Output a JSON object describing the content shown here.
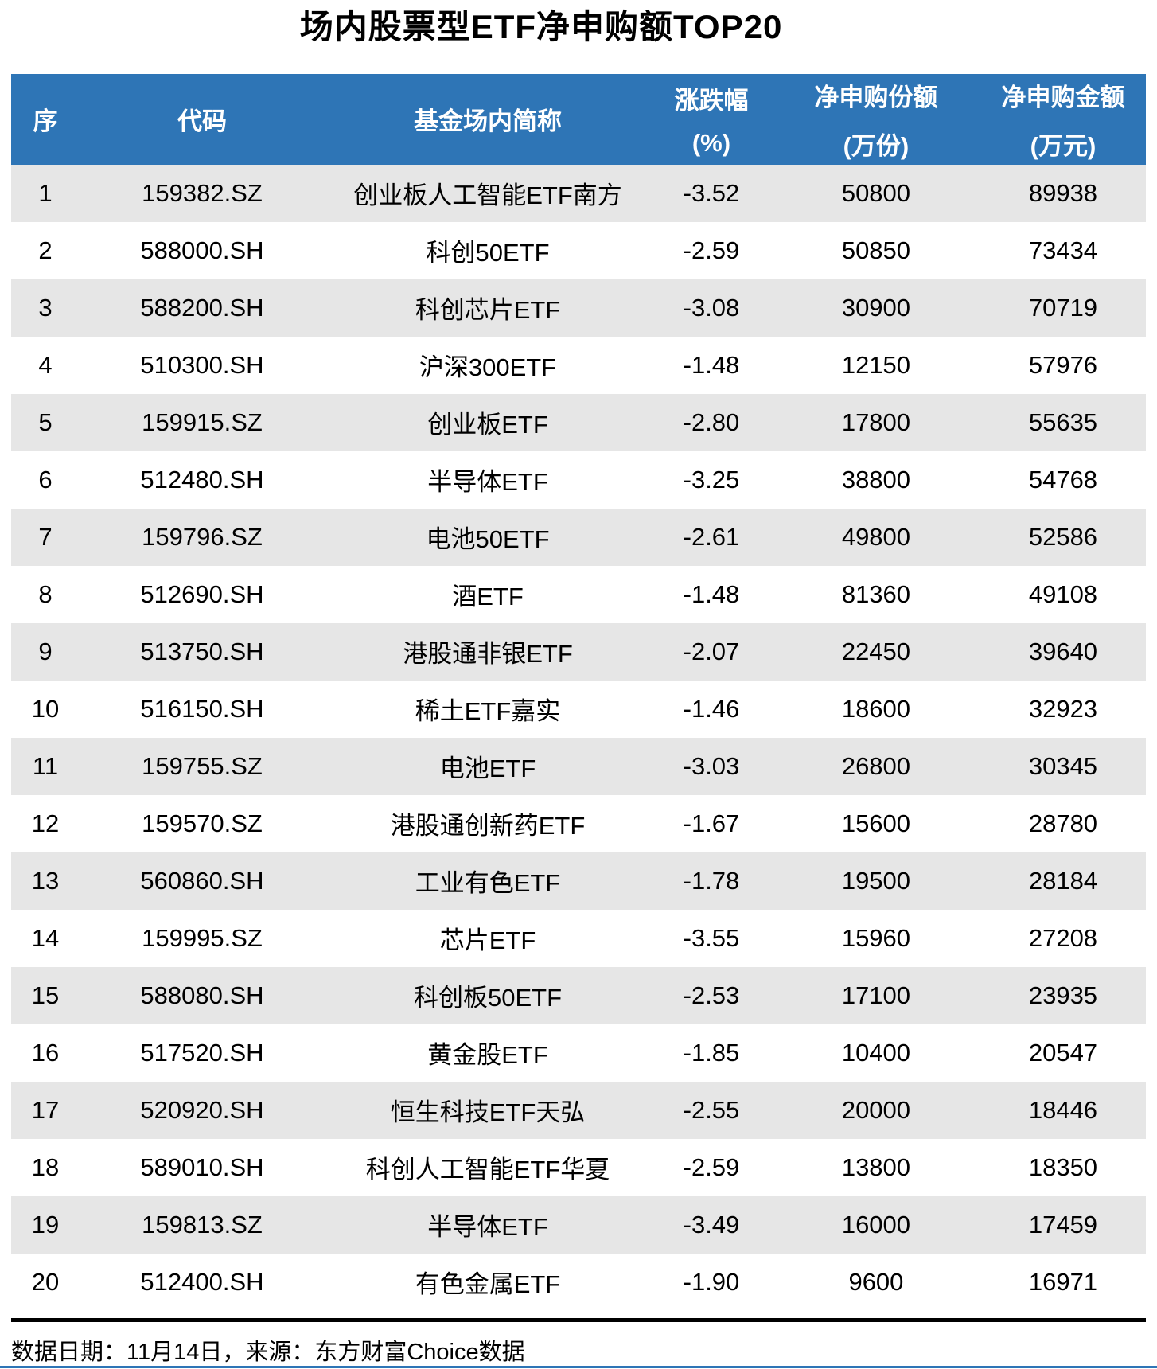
{
  "title": "场内股票型ETF净申购额TOP20",
  "colors": {
    "header_bg": "#2E75B6",
    "stripe": "#E6E6E6",
    "text": "#000000",
    "header_text": "#FFFFFF"
  },
  "table": {
    "headers": [
      {
        "key": "rank",
        "label": "序",
        "sub": ""
      },
      {
        "key": "code",
        "label": "代码",
        "sub": ""
      },
      {
        "key": "name",
        "label": "基金场内简称",
        "sub": ""
      },
      {
        "key": "change",
        "label": "涨跌幅",
        "sub": "(%)"
      },
      {
        "key": "shares",
        "label": "净申购份额",
        "sub": "(万份)"
      },
      {
        "key": "amount",
        "label": "净申购金额",
        "sub": "(万元)"
      }
    ],
    "rows": [
      [
        "1",
        "159382.SZ",
        "创业板人工智能ETF南方",
        "-3.52",
        "50800",
        "89938"
      ],
      [
        "2",
        "588000.SH",
        "科创50ETF",
        "-2.59",
        "50850",
        "73434"
      ],
      [
        "3",
        "588200.SH",
        "科创芯片ETF",
        "-3.08",
        "30900",
        "70719"
      ],
      [
        "4",
        "510300.SH",
        "沪深300ETF",
        "-1.48",
        "12150",
        "57976"
      ],
      [
        "5",
        "159915.SZ",
        "创业板ETF",
        "-2.80",
        "17800",
        "55635"
      ],
      [
        "6",
        "512480.SH",
        "半导体ETF",
        "-3.25",
        "38800",
        "54768"
      ],
      [
        "7",
        "159796.SZ",
        "电池50ETF",
        "-2.61",
        "49800",
        "52586"
      ],
      [
        "8",
        "512690.SH",
        "酒ETF",
        "-1.48",
        "81360",
        "49108"
      ],
      [
        "9",
        "513750.SH",
        "港股通非银ETF",
        "-2.07",
        "22450",
        "39640"
      ],
      [
        "10",
        "516150.SH",
        "稀土ETF嘉实",
        "-1.46",
        "18600",
        "32923"
      ],
      [
        "11",
        "159755.SZ",
        "电池ETF",
        "-3.03",
        "26800",
        "30345"
      ],
      [
        "12",
        "159570.SZ",
        "港股通创新药ETF",
        "-1.67",
        "15600",
        "28780"
      ],
      [
        "13",
        "560860.SH",
        "工业有色ETF",
        "-1.78",
        "19500",
        "28184"
      ],
      [
        "14",
        "159995.SZ",
        "芯片ETF",
        "-3.55",
        "15960",
        "27208"
      ],
      [
        "15",
        "588080.SH",
        "科创板50ETF",
        "-2.53",
        "17100",
        "23935"
      ],
      [
        "16",
        "517520.SH",
        "黄金股ETF",
        "-1.85",
        "10400",
        "20547"
      ],
      [
        "17",
        "520920.SH",
        "恒生科技ETF天弘",
        "-2.55",
        "20000",
        "18446"
      ],
      [
        "18",
        "589010.SH",
        "科创人工智能ETF华夏",
        "-2.59",
        "13800",
        "18350"
      ],
      [
        "19",
        "159813.SZ",
        "半导体ETF",
        "-3.49",
        "16000",
        "17459"
      ],
      [
        "20",
        "512400.SH",
        "有色金属ETF",
        "-1.90",
        "9600",
        "16971"
      ]
    ]
  },
  "footer": {
    "text": "数据日期：11月14日，来源：东方财富Choice数据"
  },
  "chart_data": {
    "type": "table",
    "title": "场内股票型ETF净申购额TOP20",
    "columns": [
      "序",
      "代码",
      "基金场内简称",
      "涨跌幅(%)",
      "净申购份额(万份)",
      "净申购金额(万元)"
    ],
    "rows": [
      [
        1,
        "159382.SZ",
        "创业板人工智能ETF南方",
        -3.52,
        50800,
        89938
      ],
      [
        2,
        "588000.SH",
        "科创50ETF",
        -2.59,
        50850,
        73434
      ],
      [
        3,
        "588200.SH",
        "科创芯片ETF",
        -3.08,
        30900,
        70719
      ],
      [
        4,
        "510300.SH",
        "沪深300ETF",
        -1.48,
        12150,
        57976
      ],
      [
        5,
        "159915.SZ",
        "创业板ETF",
        -2.8,
        17800,
        55635
      ],
      [
        6,
        "512480.SH",
        "半导体ETF",
        -3.25,
        38800,
        54768
      ],
      [
        7,
        "159796.SZ",
        "电池50ETF",
        -2.61,
        49800,
        52586
      ],
      [
        8,
        "512690.SH",
        "酒ETF",
        -1.48,
        81360,
        49108
      ],
      [
        9,
        "513750.SH",
        "港股通非银ETF",
        -2.07,
        22450,
        39640
      ],
      [
        10,
        "516150.SH",
        "稀土ETF嘉实",
        -1.46,
        18600,
        32923
      ],
      [
        11,
        "159755.SZ",
        "电池ETF",
        -3.03,
        26800,
        30345
      ],
      [
        12,
        "159570.SZ",
        "港股通创新药ETF",
        -1.67,
        15600,
        28780
      ],
      [
        13,
        "560860.SH",
        "工业有色ETF",
        -1.78,
        19500,
        28184
      ],
      [
        14,
        "159995.SZ",
        "芯片ETF",
        -3.55,
        15960,
        27208
      ],
      [
        15,
        "588080.SH",
        "科创板50ETF",
        -2.53,
        17100,
        23935
      ],
      [
        16,
        "517520.SH",
        "黄金股ETF",
        -1.85,
        10400,
        20547
      ],
      [
        17,
        "520920.SH",
        "恒生科技ETF天弘",
        -2.55,
        20000,
        18446
      ],
      [
        18,
        "589010.SH",
        "科创人工智能ETF华夏",
        -2.59,
        13800,
        18350
      ],
      [
        19,
        "159813.SZ",
        "半导体ETF",
        -3.49,
        16000,
        17459
      ],
      [
        20,
        "512400.SH",
        "有色金属ETF",
        -1.9,
        9600,
        16971
      ]
    ],
    "footnote": "数据日期：11月14日，来源：东方财富Choice数据"
  }
}
